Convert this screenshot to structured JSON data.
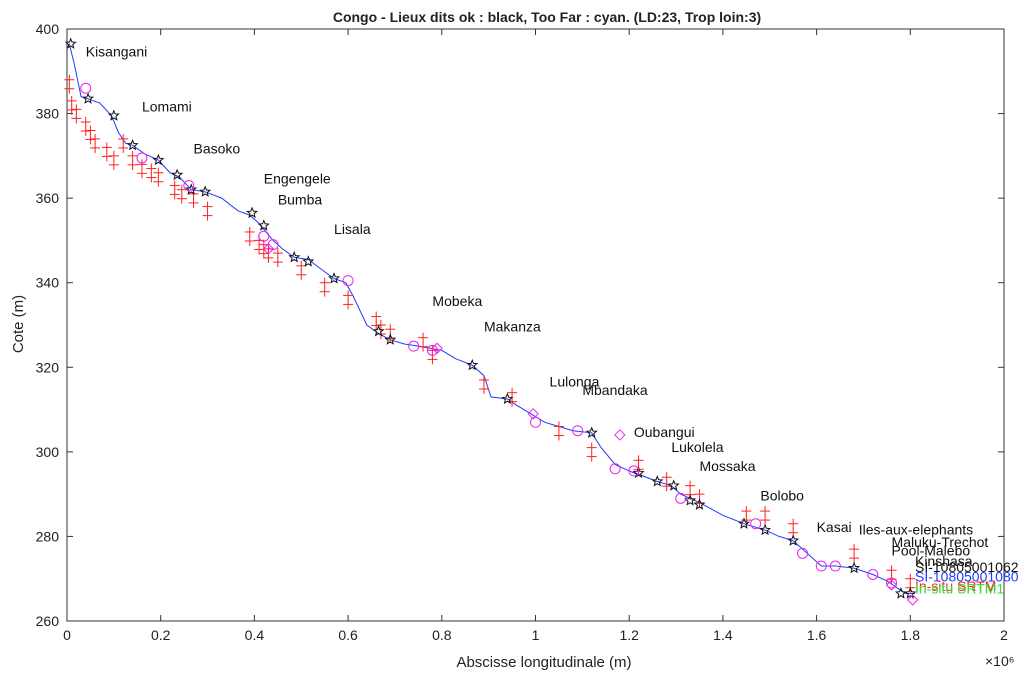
{
  "chart_data": {
    "type": "line",
    "title": "Congo - Lieux dits ok : black, Too Far : cyan. (LD:23, Trop loin:3)",
    "xlabel": "Abscisse longitudinale (m)",
    "ylabel": "Cote (m)",
    "x_multiplier_label": "×10⁶",
    "xlim": [
      0,
      2
    ],
    "ylim": [
      260,
      400
    ],
    "x_ticks": [
      "0",
      "0.2",
      "0.4",
      "0.6",
      "0.8",
      "1",
      "1.2",
      "1.4",
      "1.6",
      "1.8",
      "2"
    ],
    "y_ticks": [
      "260",
      "280",
      "300",
      "320",
      "340",
      "360",
      "380",
      "400"
    ],
    "x_units": "×10^6 m",
    "grid": false,
    "colors": {
      "profile": "#1f3cff",
      "red_marks": "#ff2020",
      "magenta_marks": "#ee22ee",
      "black_marks": "#111111",
      "green_marks": "#33dd33"
    },
    "series": [
      {
        "name": "",
        "style": "blue line",
        "x": [
          0.005,
          0.015,
          0.03,
          0.045,
          0.07,
          0.095,
          0.11,
          0.125,
          0.14,
          0.165,
          0.195,
          0.22,
          0.24,
          0.265,
          0.295,
          0.33,
          0.365,
          0.39,
          0.41,
          0.425,
          0.44,
          0.46,
          0.485,
          0.515,
          0.545,
          0.57,
          0.595,
          0.61,
          0.64,
          0.665,
          0.69,
          0.72,
          0.75,
          0.775,
          0.8,
          0.83,
          0.865,
          0.89,
          0.905,
          0.94,
          0.96,
          0.99,
          1.02,
          1.05,
          1.08,
          1.12,
          1.14,
          1.17,
          1.19,
          1.21,
          1.225,
          1.26,
          1.29,
          1.31,
          1.33,
          1.35,
          1.4,
          1.445,
          1.49,
          1.52,
          1.55,
          1.58,
          1.61,
          1.64,
          1.68,
          1.72,
          1.75,
          1.77,
          1.79,
          1.81
        ],
        "y": [
          396.5,
          392,
          384,
          383.5,
          382.5,
          379.5,
          375.5,
          373,
          372.5,
          370.5,
          369,
          366,
          365,
          362,
          361.5,
          360,
          357,
          356,
          354,
          352,
          350,
          348,
          346,
          345.5,
          343,
          341,
          340,
          337,
          330,
          328,
          326.5,
          325.5,
          325,
          324.5,
          324,
          322,
          320.5,
          318,
          313,
          312.5,
          311,
          309,
          307,
          306,
          305,
          304.5,
          301,
          297,
          296,
          295,
          294.5,
          293,
          292,
          290,
          289,
          288,
          285,
          283,
          281.5,
          280,
          279,
          276,
          273,
          273,
          272.5,
          271,
          269.5,
          268,
          266.5,
          266.5
        ]
      },
      {
        "name": "",
        "style": "red plus markers",
        "x": [
          0.005,
          0.01,
          0.02,
          0.04,
          0.05,
          0.06,
          0.085,
          0.1,
          0.12,
          0.14,
          0.16,
          0.18,
          0.195,
          0.23,
          0.245,
          0.27,
          0.3,
          0.39,
          0.41,
          0.42,
          0.43,
          0.45,
          0.5,
          0.55,
          0.6,
          0.66,
          0.67,
          0.69,
          0.76,
          0.78,
          0.89,
          0.95,
          1.05,
          1.12,
          1.22,
          1.28,
          1.33,
          1.35,
          1.45,
          1.49,
          1.55,
          1.68,
          1.76,
          1.8
        ],
        "y": [
          388,
          383,
          381,
          378,
          376,
          374,
          372,
          370,
          374,
          370,
          368,
          367,
          366,
          363,
          362,
          361,
          358,
          352,
          350,
          349,
          348,
          347,
          344,
          340,
          337,
          332,
          330,
          329,
          327,
          324,
          317,
          314,
          306,
          301,
          298,
          294,
          292,
          290,
          286,
          286,
          283,
          277,
          272,
          270
        ]
      },
      {
        "name": "",
        "style": "black star markers",
        "x": [
          0.008,
          0.045,
          0.1,
          0.14,
          0.195,
          0.235,
          0.265,
          0.295,
          0.395,
          0.42,
          0.485,
          0.515,
          0.57,
          0.665,
          0.69,
          0.865,
          0.94,
          1.12,
          1.22,
          1.26,
          1.295,
          1.33,
          1.35,
          1.445,
          1.49,
          1.55,
          1.68,
          1.78,
          1.8
        ],
        "y": [
          396.5,
          383.5,
          379.5,
          372.5,
          369,
          365.5,
          362,
          361.5,
          356.5,
          353.5,
          346,
          345,
          341,
          328.5,
          326.5,
          320.5,
          312.5,
          304.5,
          295,
          293,
          292,
          288.5,
          287.5,
          283,
          281.5,
          279,
          272.5,
          266.5,
          266.5
        ]
      },
      {
        "name": "",
        "style": "magenta circle markers",
        "x": [
          0.04,
          0.16,
          0.26,
          0.42,
          0.44,
          0.6,
          0.74,
          0.78,
          1.0,
          1.09,
          1.17,
          1.21,
          1.31,
          1.47,
          1.57,
          1.61,
          1.64,
          1.72,
          1.76
        ],
        "y": [
          386,
          369.5,
          363,
          351,
          349,
          340.5,
          325,
          324,
          307,
          305,
          296,
          295.5,
          289,
          283,
          276,
          273,
          273,
          271,
          269
        ]
      },
      {
        "name": "",
        "style": "magenta diamond markers",
        "x": [
          0.43,
          0.79,
          0.995,
          1.18,
          1.76,
          1.805
        ],
        "y": [
          348,
          324.5,
          309,
          304,
          268.5,
          265
        ]
      }
    ],
    "annotations": [
      {
        "text": "Kisangani",
        "x": 0.04,
        "y": 393.5
      },
      {
        "text": "Lomami",
        "x": 0.16,
        "y": 380.5
      },
      {
        "text": "Basoko",
        "x": 0.27,
        "y": 370.5
      },
      {
        "text": "Engengele",
        "x": 0.42,
        "y": 363.5
      },
      {
        "text": "Bumba",
        "x": 0.45,
        "y": 358.5
      },
      {
        "text": "Lisala",
        "x": 0.57,
        "y": 351.5
      },
      {
        "text": "Mobeka",
        "x": 0.78,
        "y": 334.5
      },
      {
        "text": "Makanza",
        "x": 0.89,
        "y": 328.5
      },
      {
        "text": "Lulonga",
        "x": 1.03,
        "y": 315.5
      },
      {
        "text": "Mbandaka",
        "x": 1.1,
        "y": 313.5
      },
      {
        "text": "Oubangui",
        "x": 1.21,
        "y": 303.5
      },
      {
        "text": "Lukolela",
        "x": 1.29,
        "y": 300.0
      },
      {
        "text": "Mossaka",
        "x": 1.35,
        "y": 295.5
      },
      {
        "text": "Bolobo",
        "x": 1.48,
        "y": 288.5
      },
      {
        "text": "Kasai",
        "x": 1.6,
        "y": 281.0
      },
      {
        "text": "Iles-aux-elephants",
        "x": 1.69,
        "y": 280.5
      },
      {
        "text": "Maluku-Trechot",
        "x": 1.76,
        "y": 277.5
      },
      {
        "text": "Pool-Malebo",
        "x": 1.76,
        "y": 275.5
      },
      {
        "text": "Kinshasa",
        "x": 1.81,
        "y": 273.0
      }
    ],
    "legend_texts": [
      {
        "text": "SI-10805001062",
        "color": "#111111"
      },
      {
        "text": "SI-10805001080",
        "color": "#1f3cff"
      },
      {
        "text": "In-situ SRTM",
        "color": "#ff2020"
      },
      {
        "text": "In-situ SRTM1",
        "color": "#33dd33"
      }
    ]
  }
}
